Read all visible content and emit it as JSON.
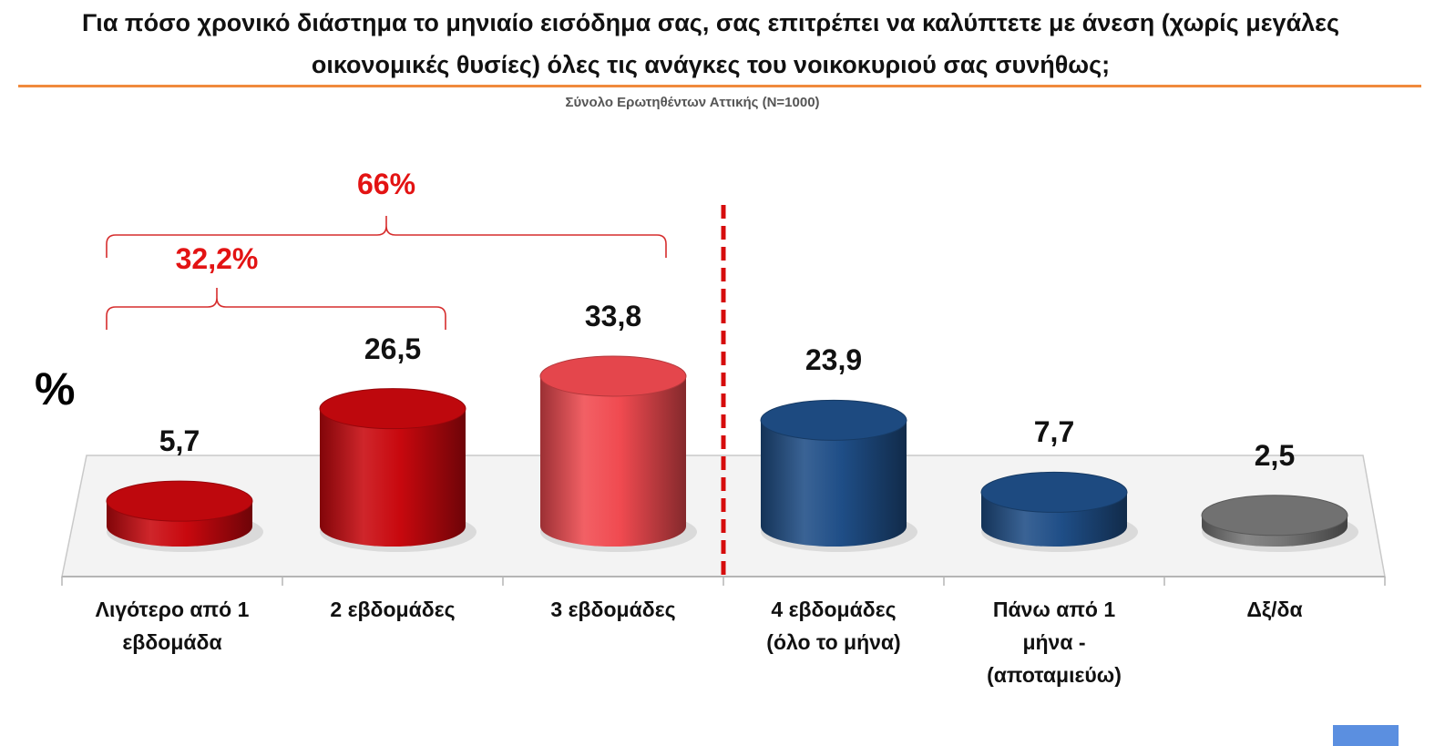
{
  "title": "Για πόσο χρονικό διάστημα το μηνιαίο εισόδημα σας, σας επιτρέπει να καλύπτετε με άνεση (χωρίς μεγάλες οικονομικές θυσίες) όλες τις ανάγκες του νοικοκυριού σας συνήθως;",
  "subtitle": "Σύνολο Ερωτηθέντων Αττικής (N=1000)",
  "y_unit": "%",
  "brackets": [
    {
      "label": "66%",
      "from": 0,
      "to": 2
    },
    {
      "label": "32,2%",
      "from": 0,
      "to": 1
    }
  ],
  "colors": {
    "red": "#c8080e",
    "light_red": "#f04a50",
    "blue": "#1f4e87",
    "gray": "#777777",
    "bracket": "#d62d2d",
    "divider": "#d60c0c",
    "header_rule": "#f08a3c"
  },
  "chart_data": {
    "type": "bar",
    "title": "Για πόσο χρονικό διάστημα το μηνιαίο εισόδημα σας, σας επιτρέπει να καλύπτετε με άνεση (χωρίς μεγάλες οικονομικές θυσίες) όλες τις ανάγκες του νοικοκυριού σας συνήθως;",
    "subtitle": "Σύνολο Ερωτηθέντων Αττικής (N=1000)",
    "ylabel": "%",
    "categories": [
      "Λιγότερο από 1\nεβδομάδα",
      "2 εβδομάδες",
      "3 εβδομάδες",
      "4 εβδομάδες\n(όλο το μήνα)",
      "Πάνω από 1\nμήνα -\n(αποταμιεύω)",
      "Δξ/δα"
    ],
    "values": [
      5.7,
      26.5,
      33.8,
      23.9,
      7.7,
      2.5
    ],
    "value_labels": [
      "5,7",
      "26,5",
      "33,8",
      "23,9",
      "7,7",
      "2,5"
    ],
    "bar_colors": [
      "red",
      "red",
      "light_red",
      "blue",
      "blue",
      "gray"
    ],
    "ylim": [
      0,
      40
    ],
    "grid": false
  }
}
